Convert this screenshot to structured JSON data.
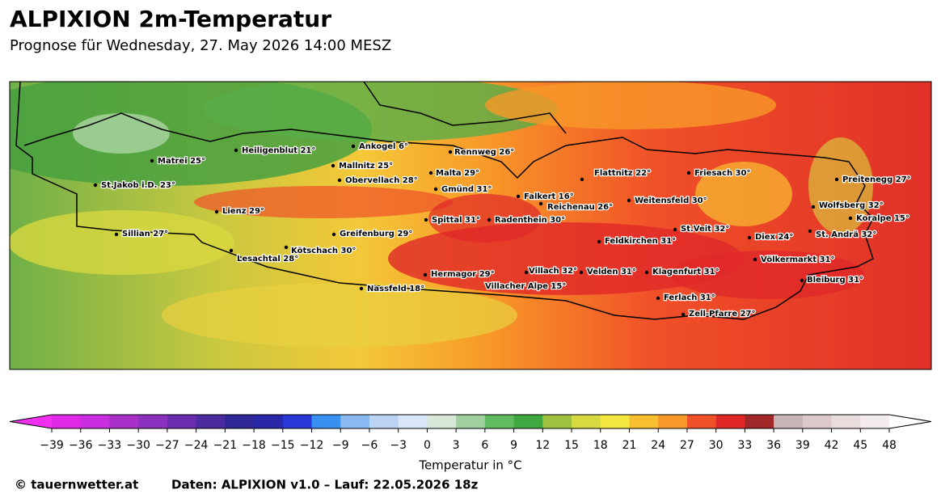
{
  "header": {
    "title": "ALPIXION 2m-Temperatur",
    "subtitle": "Prognose für Wednesday, 27. May 2026 14:00 MESZ"
  },
  "map": {
    "places": [
      "Heiligenblut 21°",
      "Ankogel 6°",
      "Rennweg 26°",
      "Matrei 25°",
      "Mallnitz 25°",
      "Malta 29°",
      "Flattnitz 22°",
      "Friesach 30°",
      "Preitenegg 27°",
      "St.Jakob i.D. 23°",
      "Obervellach 28°",
      "Gmünd 31°",
      "Falkert 16°",
      "Weitensfeld 30°",
      "Reichenau 26°",
      "Wolfsberg 32°",
      "Lienz 29°",
      "Koralpe 15°",
      "Spittal 31°",
      "Radenthein 30°",
      "St.Veit 32°",
      "Sillian 27°",
      "Greifenburg 29°",
      "Diex 24°",
      "St. Andrä 32°",
      "Feldkirchen 31°",
      "Kötschach 30°",
      "Lesachtal 28°",
      "Völkermarkt 31°",
      "Villach 32°",
      "Velden 31°",
      "Klagenfurt 31°",
      "Hermagor 29°",
      "Bleiburg 31°",
      "Villacher Alpe 15°",
      "Nassfeld 18°",
      "Ferlach 31°",
      "Zell-Pfarre 27°"
    ]
  },
  "colorbar": {
    "label": "Temperatur in °C",
    "under_color": "#f030f0",
    "over_color": "#ffffff",
    "colors": [
      "#e028e8",
      "#c82ee0",
      "#a830c8",
      "#8c30c0",
      "#6c2cb0",
      "#4c2aa0",
      "#302898",
      "#2828a8",
      "#2838d8",
      "#3890f0",
      "#8ab8f0",
      "#bcd4f4",
      "#d8e6f8",
      "#d8e8d8",
      "#a0d0a0",
      "#60bc60",
      "#40a840",
      "#a0c040",
      "#d8d840",
      "#f4e840",
      "#f8c030",
      "#f89828",
      "#f05028",
      "#e02828",
      "#a02828",
      "#c8b4b4",
      "#dcc8c8",
      "#e8dcdc",
      "#f4ecec"
    ],
    "ticks": [
      {
        "value": -39,
        "label": "−39"
      },
      {
        "value": -36,
        "label": "−36"
      },
      {
        "value": -33,
        "label": "−33"
      },
      {
        "value": -30,
        "label": "−30"
      },
      {
        "value": -27,
        "label": "−27"
      },
      {
        "value": -24,
        "label": "−24"
      },
      {
        "value": -21,
        "label": "−21"
      },
      {
        "value": -18,
        "label": "−18"
      },
      {
        "value": -15,
        "label": "−15"
      },
      {
        "value": -12,
        "label": "−12"
      },
      {
        "value": -9,
        "label": "−9"
      },
      {
        "value": -6,
        "label": "−6"
      },
      {
        "value": -3,
        "label": "−3"
      },
      0,
      3,
      6,
      9,
      12,
      15,
      18,
      21,
      24,
      27,
      30,
      33,
      36,
      39,
      42,
      45,
      48
    ]
  },
  "footer": {
    "copyright": "© tauernwetter.at",
    "source": "Daten: ALPIXION v1.0 – Lauf: 22.05.2026 18z"
  }
}
